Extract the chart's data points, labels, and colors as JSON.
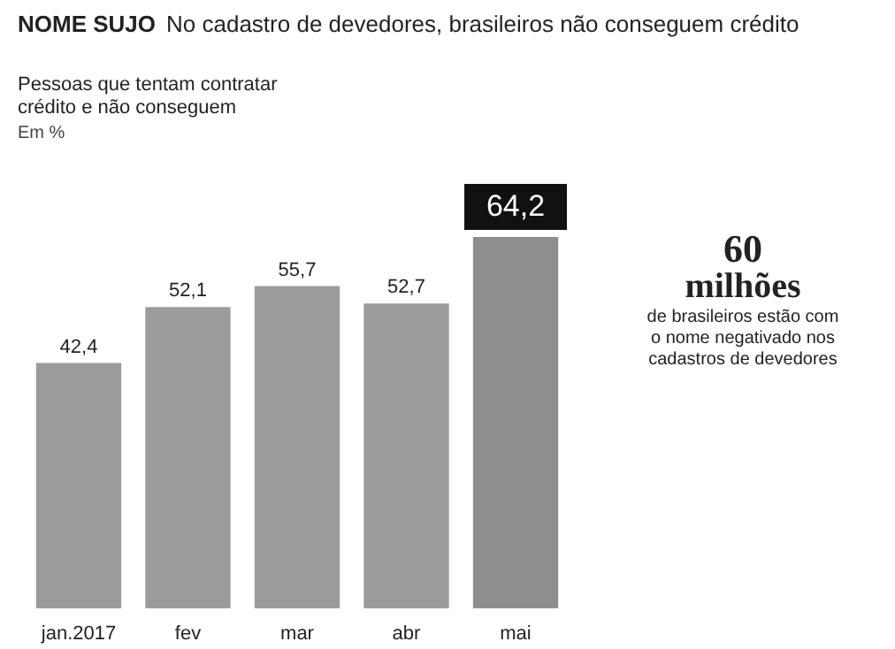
{
  "chart_data": {
    "type": "bar",
    "title": "NOME SUJO",
    "subtitle": "No cadastro de devedores, brasileiros não conseguem crédito",
    "annotations": [
      "Pessoas que tentam contratar crédito e não conseguem",
      "Em %",
      "60",
      "milhões",
      "de brasileiros estão com o nome negativado nos cadastros de devedores"
    ],
    "categories": [
      "jan.2017",
      "fev",
      "mar",
      "abr",
      "mai"
    ],
    "values": [
      42.4,
      52.1,
      55.7,
      52.7,
      64.2
    ],
    "value_labels": [
      "42,4",
      "52,1",
      "55,7",
      "52,7",
      "64,2"
    ],
    "colors": [
      "#9b9b9b",
      "#9b9b9b",
      "#9b9b9b",
      "#9b9b9b",
      "#8e8e8e"
    ],
    "grid": false
  }
}
